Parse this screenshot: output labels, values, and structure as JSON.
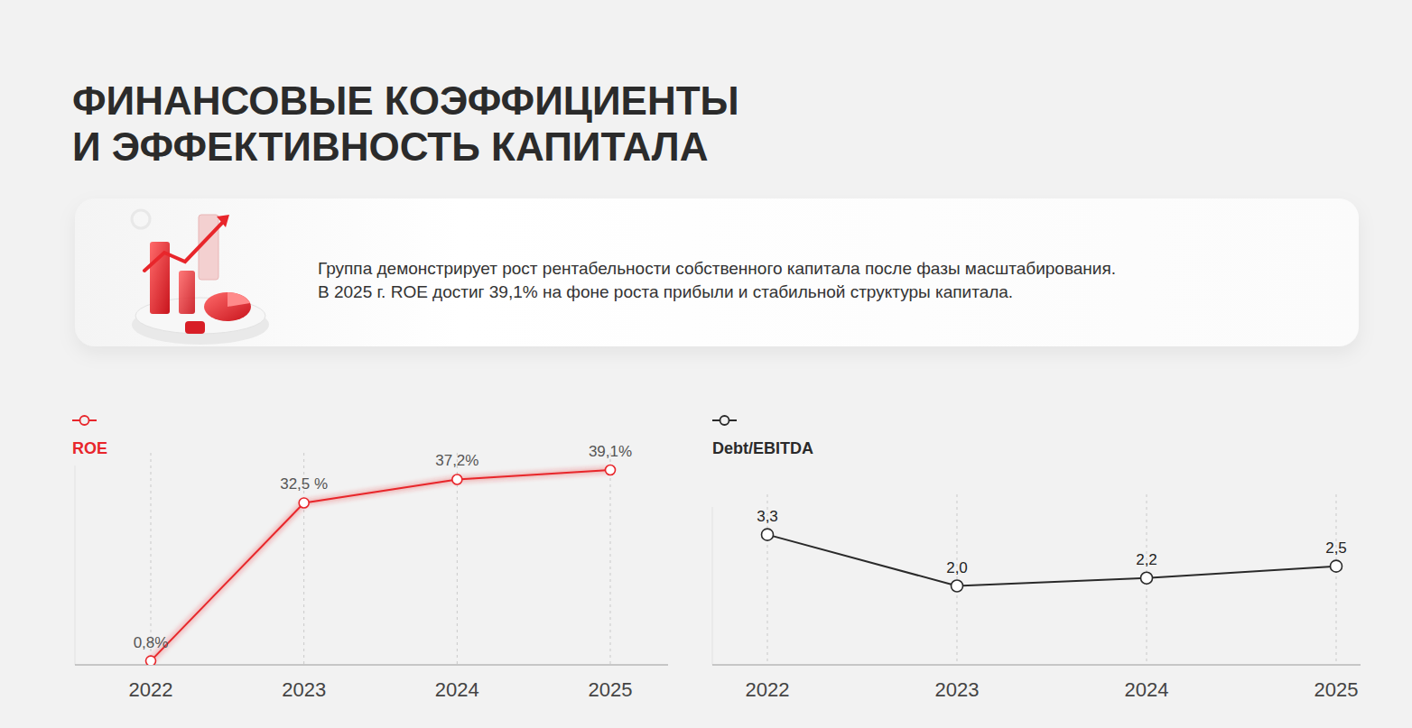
{
  "title": [
    "ФИНАНСОВЫЕ КОЭФФИЦИЕНТЫ",
    "И ЭФФЕКТИВНОСТЬ КАПИТАЛА"
  ],
  "description": [
    "Группа демонстрирует рост рентабельности собственного капитала после фазы масштабирования.",
    "В 2025 г. ROE достиг 39,1% на фоне роста прибыли и стабильной структуры капитала."
  ],
  "chart_data": [
    {
      "type": "line",
      "categories": [
        "2022",
        "2023",
        "2024",
        "2025"
      ],
      "series": [
        {
          "name": "ROE",
          "color": "#e8262b",
          "marker": "circle",
          "values": [
            0.8,
            32.5,
            37.2,
            39.1
          ],
          "value_labels": [
            "0,8%",
            "32,5 %",
            "37,2%",
            "39,1%"
          ]
        }
      ],
      "ylim": [
        0,
        40
      ],
      "grid": true,
      "data_labels": true,
      "tick_labels": "x",
      "legend": "top-left"
    },
    {
      "type": "line",
      "categories": [
        "2022",
        "2023",
        "2024",
        "2025"
      ],
      "series": [
        {
          "name": "Debt/EBITDA",
          "color": "#2a2a2a",
          "marker": "circle",
          "values": [
            3.3,
            2.0,
            2.2,
            2.5
          ],
          "value_labels": [
            "3,3",
            "2,0",
            "2,2",
            "2,5"
          ]
        }
      ],
      "ylim": [
        0,
        4
      ],
      "grid": true,
      "data_labels": true,
      "tick_labels": "x",
      "legend": "top-left"
    }
  ]
}
